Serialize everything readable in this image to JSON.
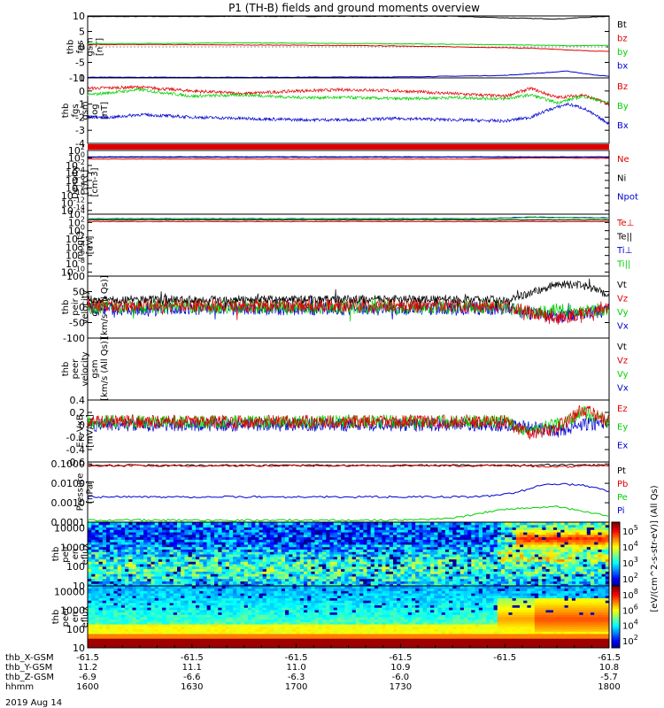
{
  "title": "P1 (TH-B) fields and ground moments overview",
  "date_label": "2019 Aug 14",
  "colors": {
    "black": "#000000",
    "red": "#e00000",
    "green": "#00d000",
    "blue": "#0000d0"
  },
  "colorbar_label": "[eV/(cm^2-s-str-eV)] (All Qs)",
  "chart_data": [
    {
      "type": "line",
      "id": "fgs",
      "ylabel": [
        "thb",
        "fgs",
        "gsm",
        "[nT]"
      ],
      "ylim": [
        -10,
        10
      ],
      "yticks": [
        10,
        5,
        0,
        -5,
        -10
      ],
      "legend": [
        {
          "name": "Bt",
          "color": "black"
        },
        {
          "name": "bz",
          "color": "red"
        },
        {
          "name": "by",
          "color": "green"
        },
        {
          "name": "bx",
          "color": "blue"
        }
      ],
      "series": [
        {
          "name": "Bt",
          "color": "black",
          "x": [
            0,
            0.6,
            0.7,
            0.82,
            0.9,
            0.95,
            1
          ],
          "y": [
            9.8,
            9.9,
            9.9,
            9.3,
            9.0,
            9.5,
            9.9
          ]
        },
        {
          "name": "bz",
          "color": "red",
          "x": [
            0,
            0.35,
            0.6,
            0.85,
            0.92,
            1
          ],
          "y": [
            0.8,
            0.6,
            0.3,
            -0.4,
            -1.0,
            -1.5
          ]
        },
        {
          "name": "by",
          "color": "green",
          "x": [
            0,
            0.3,
            0.6,
            0.85,
            0.92,
            1
          ],
          "y": [
            1.0,
            1.3,
            1.0,
            0.6,
            0.4,
            0.5
          ]
        },
        {
          "name": "bx",
          "color": "blue",
          "x": [
            0,
            0.3,
            0.6,
            0.8,
            0.88,
            0.92,
            0.96,
            1
          ],
          "y": [
            -9.8,
            -9.8,
            -9.7,
            -9.2,
            -8.3,
            -7.8,
            -8.8,
            -9.5
          ]
        }
      ]
    },
    {
      "type": "line",
      "id": "fgs-log",
      "noisy": true,
      "ylabel": [
        "thb",
        "fgs",
        "gsm",
        "log",
        "[nT]"
      ],
      "ylim": [
        -4,
        1
      ],
      "yticks": [
        1,
        0,
        -1,
        -2,
        -3,
        -4
      ],
      "legend": [
        {
          "name": "Bz",
          "color": "red"
        },
        {
          "name": "By",
          "color": "green"
        },
        {
          "name": "Bx",
          "color": "blue"
        }
      ],
      "series": [
        {
          "name": "Bz",
          "color": "red",
          "x": [
            0,
            0.1,
            0.2,
            0.3,
            0.4,
            0.5,
            0.6,
            0.7,
            0.8,
            0.85,
            0.9,
            0.95,
            1
          ],
          "y": [
            0.2,
            0.3,
            0.0,
            -0.2,
            0.0,
            0.1,
            0.0,
            -0.2,
            -0.4,
            0.2,
            -0.5,
            -0.3,
            -1.0
          ]
        },
        {
          "name": "By",
          "color": "green",
          "x": [
            0,
            0.1,
            0.2,
            0.3,
            0.4,
            0.5,
            0.6,
            0.7,
            0.8,
            0.85,
            0.9,
            0.95,
            1
          ],
          "y": [
            -0.3,
            0.1,
            -0.4,
            -0.3,
            -0.5,
            -0.5,
            -0.6,
            -0.5,
            -0.6,
            -0.3,
            -0.9,
            -0.4,
            -0.9
          ]
        },
        {
          "name": "Bx",
          "color": "blue",
          "x": [
            0,
            0.05,
            0.1,
            0.2,
            0.3,
            0.4,
            0.5,
            0.6,
            0.7,
            0.8,
            0.85,
            0.88,
            0.92,
            0.95,
            1
          ],
          "y": [
            -2.0,
            -2.0,
            -1.8,
            -2.0,
            -2.1,
            -2.2,
            -2.2,
            -2.1,
            -2.2,
            -2.3,
            -2.0,
            -1.5,
            -1.0,
            -1.3,
            -2.5
          ]
        }
      ]
    },
    {
      "type": "line",
      "id": "density",
      "logscale": true,
      "ylabel": [
        "Density",
        "[1/cc]",
        "[cm-3]"
      ],
      "ylim": [
        -15,
        2
      ],
      "yticks": [
        "10^2",
        "10^0",
        "10^-2",
        "10^-4",
        "10^-6",
        "10^-8",
        "10^-10",
        "10^-12",
        "10^-14"
      ],
      "legend": [
        {
          "name": "Ne",
          "color": "red"
        },
        {
          "name": "Ni",
          "color": "black"
        },
        {
          "name": "Npot",
          "color": "blue"
        }
      ],
      "series": [
        {
          "name": "Ni",
          "color": "black",
          "x": [
            0,
            1
          ],
          "y": [
            0.2,
            0.2
          ]
        },
        {
          "name": "Ne",
          "color": "red",
          "x": [
            0,
            0.75,
            0.85,
            1
          ],
          "y": [
            -0.3,
            -0.3,
            0.0,
            -0.1
          ]
        },
        {
          "name": "Npot",
          "color": "blue",
          "x": [
            0,
            1
          ],
          "y": [
            0.3,
            0.3
          ]
        }
      ]
    },
    {
      "type": "line",
      "id": "temp",
      "logscale": true,
      "ylabel": [
        "moqt3",
        "[eV]"
      ],
      "ylim": [
        -11,
        4
      ],
      "yticks": [
        "10^4",
        "10^2",
        "10^0",
        "10^-2",
        "10^-4",
        "10^-6",
        "10^-8",
        "10^-10"
      ],
      "legend": [
        {
          "name": "Te⊥",
          "color": "red"
        },
        {
          "name": "Te||",
          "color": "black"
        },
        {
          "name": "Ti⊥",
          "color": "blue"
        },
        {
          "name": "Ti||",
          "color": "green"
        }
      ],
      "series": [
        {
          "name": "Te||",
          "color": "black",
          "x": [
            0,
            1
          ],
          "y": [
            2.6,
            2.6
          ]
        },
        {
          "name": "Te⊥",
          "color": "red",
          "x": [
            0,
            1
          ],
          "y": [
            2.2,
            2.2
          ]
        },
        {
          "name": "Ti⊥",
          "color": "blue",
          "x": [
            0,
            0.75,
            0.85,
            1
          ],
          "y": [
            2.9,
            2.9,
            3.3,
            3.1
          ]
        },
        {
          "name": "Ti||",
          "color": "green",
          "x": [
            0,
            0.75,
            0.85,
            1
          ],
          "y": [
            2.8,
            2.8,
            3.2,
            3.0
          ]
        }
      ]
    },
    {
      "type": "line",
      "id": "peir-vel",
      "noisy": true,
      "ylabel": [
        "thb",
        "peir",
        "velocity",
        "gsm",
        "[km/s (All Qs)]"
      ],
      "ylim": [
        -100,
        100
      ],
      "yticks": [
        100,
        50,
        0,
        -50,
        -100
      ],
      "legend": [
        {
          "name": "Vt",
          "color": "black"
        },
        {
          "name": "Vz",
          "color": "red"
        },
        {
          "name": "Vy",
          "color": "green"
        },
        {
          "name": "Vx",
          "color": "blue"
        }
      ],
      "series": [
        {
          "name": "Vx",
          "color": "blue",
          "x": [
            0,
            0.8,
            0.85,
            0.9,
            0.95,
            1
          ],
          "y": [
            -5,
            -5,
            -20,
            -30,
            -20,
            -10
          ]
        },
        {
          "name": "Vy",
          "color": "green",
          "x": [
            0,
            0.8,
            0.85,
            0.9,
            0.95,
            1
          ],
          "y": [
            0,
            0,
            -20,
            -10,
            -15,
            -5
          ]
        },
        {
          "name": "Vz",
          "color": "red",
          "x": [
            0,
            0.8,
            0.85,
            0.9,
            0.95,
            1
          ],
          "y": [
            5,
            5,
            -15,
            -40,
            -20,
            5
          ]
        },
        {
          "name": "Vt",
          "color": "black",
          "x": [
            0,
            0.8,
            0.85,
            0.9,
            0.95,
            1
          ],
          "y": [
            25,
            25,
            45,
            75,
            70,
            40
          ]
        }
      ]
    },
    {
      "type": "line",
      "id": "peer-vel",
      "empty": true,
      "ylabel": [
        "thb",
        "peer",
        "velocity",
        "gsm",
        "[km/s (All Qs)]"
      ],
      "ylim": [
        -100,
        100
      ],
      "yticks": [],
      "legend": [
        {
          "name": "Vt",
          "color": "black"
        },
        {
          "name": "Vz",
          "color": "red"
        },
        {
          "name": "Vy",
          "color": "green"
        },
        {
          "name": "Vx",
          "color": "blue"
        }
      ],
      "series": []
    },
    {
      "type": "line",
      "id": "efield",
      "noisy": true,
      "ylabel": [
        "E=-VxB",
        "[mV/m]"
      ],
      "ylim": [
        -0.6,
        0.4
      ],
      "yticks": [
        0.4,
        0.2,
        0.0,
        -0.2,
        -0.4,
        -0.6
      ],
      "legend": [
        {
          "name": "Ez",
          "color": "red"
        },
        {
          "name": "Ey",
          "color": "green"
        },
        {
          "name": "Ex",
          "color": "blue"
        }
      ],
      "series": [
        {
          "name": "Ex",
          "color": "blue",
          "x": [
            0,
            0.8,
            0.85,
            0.9,
            0.95,
            1
          ],
          "y": [
            0.0,
            0.0,
            -0.05,
            -0.1,
            0.0,
            0.05
          ]
        },
        {
          "name": "Ey",
          "color": "green",
          "x": [
            0,
            0.8,
            0.85,
            0.9,
            0.95,
            1
          ],
          "y": [
            0.05,
            0.05,
            -0.1,
            0.0,
            0.2,
            0.05
          ]
        },
        {
          "name": "Ez",
          "color": "red",
          "x": [
            0,
            0.8,
            0.85,
            0.9,
            0.95,
            1
          ],
          "y": [
            0.05,
            0.05,
            -0.15,
            -0.05,
            0.25,
            0.05
          ]
        }
      ]
    },
    {
      "type": "line",
      "id": "pressure",
      "logscale": true,
      "ylabel": [
        "Pressure",
        "[nPa]"
      ],
      "ylim": [
        -4,
        -0.9
      ],
      "yticks": [
        "0.1000",
        "0.0100",
        "0.0010",
        "0.0001"
      ],
      "legend": [
        {
          "name": "Pt",
          "color": "black"
        },
        {
          "name": "Pb",
          "color": "red"
        },
        {
          "name": "Pe",
          "color": "green"
        },
        {
          "name": "Pi",
          "color": "blue"
        }
      ],
      "series": [
        {
          "name": "Pt",
          "color": "black",
          "x": [
            0,
            0.8,
            0.9,
            1
          ],
          "y": [
            -1.08,
            -1.08,
            -1.05,
            -1.07
          ]
        },
        {
          "name": "Pb",
          "color": "red",
          "x": [
            0,
            0.8,
            0.9,
            1
          ],
          "y": [
            -1.09,
            -1.09,
            -1.15,
            -1.09
          ]
        },
        {
          "name": "Pi",
          "color": "blue",
          "x": [
            0,
            0.75,
            0.82,
            0.88,
            0.95,
            1
          ],
          "y": [
            -2.7,
            -2.7,
            -2.5,
            -2.0,
            -2.1,
            -2.4
          ]
        },
        {
          "name": "Pe",
          "color": "green",
          "x": [
            0,
            0.6,
            0.7,
            0.78,
            0.82,
            0.9,
            1
          ],
          "y": [
            -3.9,
            -3.9,
            -3.8,
            -3.4,
            -3.3,
            -3.2,
            -3.7
          ]
        }
      ]
    },
    {
      "type": "heatmap",
      "id": "peir-spec",
      "ylabel": [
        "thb",
        "peir",
        "en",
        "eflux",
        "eV",
        "(cm2-s-",
        "sr-eV)"
      ],
      "ylim": [
        1,
        4.3
      ],
      "yticks": [
        "10000",
        "1000",
        "100",
        "10"
      ],
      "colorbar": {
        "ticks": [
          "10^5",
          "10^4",
          "10^3",
          "10^2"
        ]
      }
    },
    {
      "type": "heatmap",
      "id": "peer-spec",
      "ylabel": [
        "thb",
        "peer",
        "en",
        "eflux",
        "eV",
        "(cm2-s-",
        "sr-eV)"
      ],
      "ylim": [
        1,
        4.3
      ],
      "yticks": [
        "10000",
        "1000",
        "100",
        "10"
      ],
      "colorbar": {
        "ticks": [
          "10^8",
          "10^6",
          "10^4",
          "10^2"
        ]
      }
    }
  ],
  "x_axis": {
    "rows": [
      {
        "label": "thb_X-GSM",
        "values": [
          "-61.5",
          "-61.5",
          "-61.5",
          "-61.5",
          "-61.5",
          "-61.5"
        ]
      },
      {
        "label": "thb_Y-GSM",
        "values": [
          "11.2",
          "11.1",
          "11.0",
          "10.9",
          "",
          "10.8"
        ]
      },
      {
        "label": "thb_Z-GSM",
        "values": [
          "-6.9",
          "-6.6",
          "-6.3",
          "-6.0",
          "",
          "-5.7"
        ]
      },
      {
        "label": "hhmm",
        "values": [
          "1600",
          "1630",
          "1700",
          "1730",
          "",
          "1800"
        ]
      }
    ]
  }
}
